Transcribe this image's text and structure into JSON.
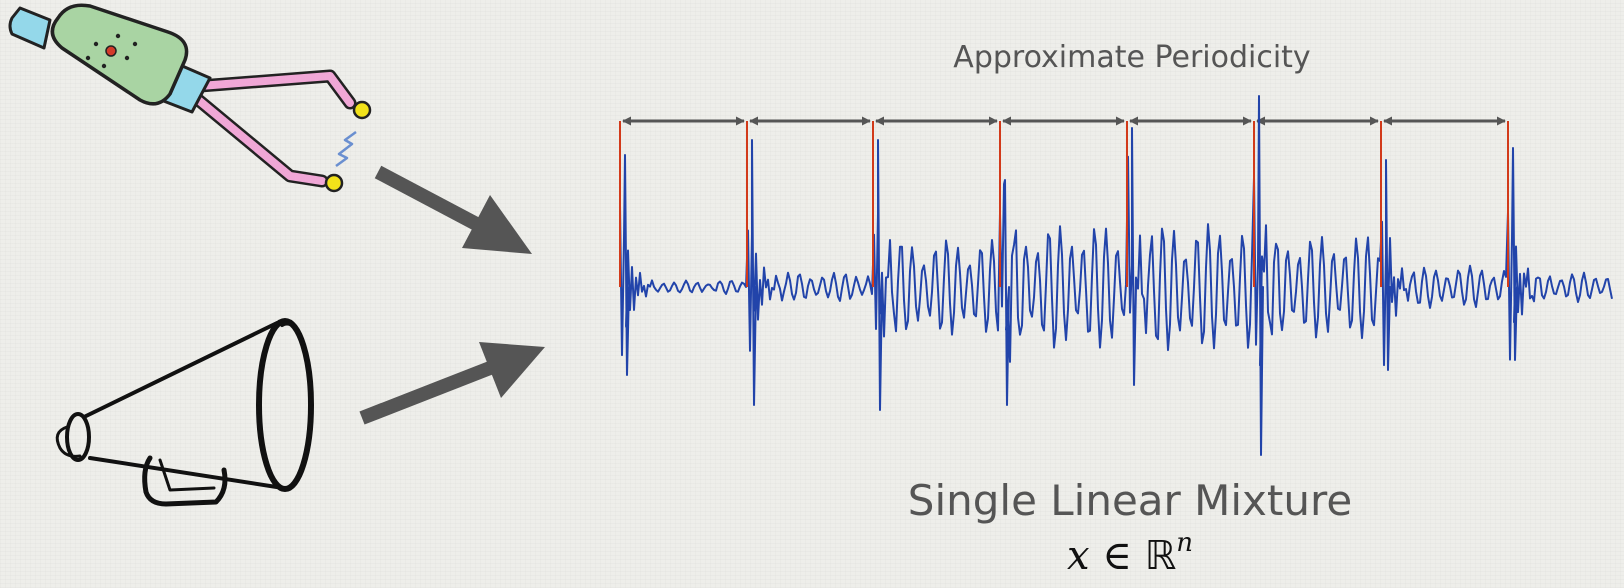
{
  "title": "Approximate Periodicity",
  "caption": "Single Linear Mixture",
  "math": {
    "variable": "x",
    "relation": "∈",
    "space": "ℝ",
    "exponent": "n"
  },
  "colors": {
    "signal": "#2244aa",
    "markers": "#d23a1a",
    "arrows": "#555555",
    "text": "#555555"
  },
  "icons": [
    "tuning-fork-icon",
    "megaphone-icon",
    "arrow-icon"
  ]
}
